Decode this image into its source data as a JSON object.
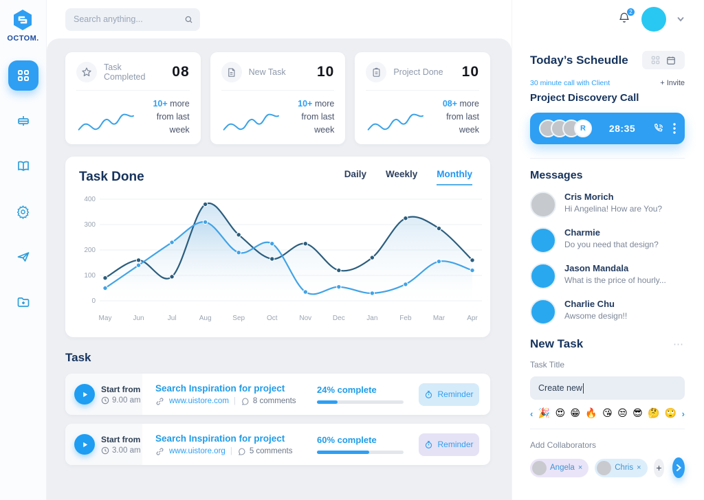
{
  "colors": {
    "accent": "#2e9ff3",
    "navy_text": "#16335c",
    "chart_dark": "#2b5d7d",
    "chart_light": "#41a3e6",
    "gray_text": "#7d8798"
  },
  "sidebar": {
    "logo_text": "OCTOM.",
    "items": [
      {
        "icon": "dashboard-grid-icon",
        "active": true
      },
      {
        "icon": "tune-icon",
        "active": false
      },
      {
        "icon": "book-icon",
        "active": false
      },
      {
        "icon": "settings-gear-icon",
        "active": false
      },
      {
        "icon": "send-icon",
        "active": false
      },
      {
        "icon": "folder-add-icon",
        "active": false
      }
    ]
  },
  "topbar": {
    "search_placeholder": "Search anything...",
    "notification_count": "2"
  },
  "stats": [
    {
      "icon": "star-icon",
      "label": "Task Completed",
      "value": "08",
      "delta": "10+",
      "delta_rest": " more",
      "sub": "from last week"
    },
    {
      "icon": "document-icon",
      "label": "New Task",
      "value": "10",
      "delta": "10+",
      "delta_rest": " more",
      "sub": "from last week"
    },
    {
      "icon": "clipboard-icon",
      "label": "Project Done",
      "value": "10",
      "delta": "08+",
      "delta_rest": " more",
      "sub": "from last week"
    }
  ],
  "chart_card": {
    "title": "Task Done",
    "tabs": [
      {
        "label": "Daily"
      },
      {
        "label": "Weekly"
      },
      {
        "label": "Monthly"
      }
    ],
    "active_tab": "Monthly"
  },
  "chart_data": {
    "type": "line",
    "title": "Task Done",
    "xlabel": "",
    "ylabel": "",
    "x": [
      "May",
      "Jun",
      "Jul",
      "Aug",
      "Sep",
      "Oct",
      "Nov",
      "Dec",
      "Jan",
      "Feb",
      "Mar",
      "Apr"
    ],
    "series": [
      {
        "name": "dark_blue",
        "color": "#2b5d7d",
        "values": [
          90,
          160,
          95,
          380,
          260,
          165,
          225,
          120,
          170,
          325,
          285,
          160
        ]
      },
      {
        "name": "light_blue",
        "color": "#41a3e6",
        "values": [
          50,
          140,
          230,
          310,
          190,
          225,
          35,
          55,
          30,
          65,
          155,
          120
        ]
      }
    ],
    "ylim": [
      0,
      400
    ],
    "yticks": [
      0,
      100,
      200,
      300,
      400
    ],
    "grid": "horizontal",
    "legend": "none",
    "area_fill": true
  },
  "task_section": {
    "title": "Task",
    "rows": [
      {
        "start_label": "Start from",
        "time": "9.00 am",
        "title": "Search Inspiration for project",
        "url": "www.uistore.com",
        "comments": "8 comments",
        "complete_label": "24% complete",
        "percent": 24,
        "reminder_label": "Reminder",
        "reminder_bg": "#d5ebfa"
      },
      {
        "start_label": "Start from",
        "time": "3.00 am",
        "title": "Search Inspiration for project",
        "url": "www.uistore.org",
        "comments": "5 comments",
        "complete_label": "60% complete",
        "percent": 60,
        "reminder_label": "Reminder",
        "reminder_bg": "#e5e2f6"
      }
    ]
  },
  "schedule": {
    "title": "Today’s Scheudle",
    "subtitle": "30 minute call with Client",
    "invite_label": "+ Invite",
    "call_name": "Project Discovery Call",
    "call": {
      "timer": "28:35",
      "badge": "R"
    }
  },
  "messages": {
    "title": "Messages",
    "items": [
      {
        "name": "Cris Morich",
        "text": "Hi Angelina! How are You?",
        "avatar_color": "#c6c9cd"
      },
      {
        "name": "Charmie",
        "text": "Do you need that design?",
        "avatar_color": "#29a8f0"
      },
      {
        "name": "Jason Mandala",
        "text": "What is the price of hourly...",
        "avatar_color": "#29a8f0"
      },
      {
        "name": "Charlie Chu",
        "text": "Awsome design!!",
        "avatar_color": "#29a8f0"
      }
    ]
  },
  "new_task": {
    "title": "New Task",
    "menu_dots": "⋯",
    "field_label": "Task Title",
    "field_value": "Create new",
    "emojis": [
      "🎉",
      "😍",
      "😁",
      "🔥",
      "😘",
      "😒",
      "😎",
      "🤔",
      "🙄"
    ],
    "prev_arrow": "‹",
    "next_arrow": "›",
    "collaborators_label": "Add Collaborators",
    "chips": [
      {
        "name": "Angela",
        "remove": "×",
        "bg": "#eae4f8"
      },
      {
        "name": "Chris",
        "remove": "×",
        "bg": "#ddeefb"
      }
    ],
    "add_label": "+",
    "submit_arrow": "›"
  }
}
